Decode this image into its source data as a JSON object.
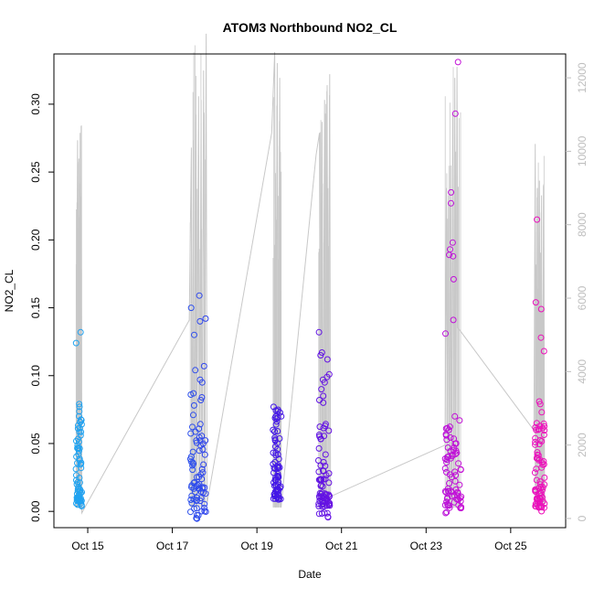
{
  "chart_data": {
    "type": "scatter",
    "title": "ATOM3 Northbound NO2_CL",
    "xlabel": "Date",
    "ylabel": "NO2_CL",
    "x_ticks": [
      "Oct 15",
      "Oct 17",
      "Oct 19",
      "Oct 21",
      "Oct 23",
      "Oct 25"
    ],
    "y_ticks": [
      "0.00",
      "0.05",
      "0.10",
      "0.15",
      "0.20",
      "0.25",
      "0.30"
    ],
    "y2_ticks": [
      "0",
      "2000",
      "4000",
      "6000",
      "8000",
      "10000",
      "12000"
    ],
    "xlim_days": [
      14.2,
      26.3
    ],
    "ylim": [
      -0.012,
      0.337
    ],
    "y2lim": [
      -250,
      12650
    ],
    "colors": {
      "altitude_line": "#c8c8c8",
      "axis": "#000000",
      "right_axis": "#bebebe",
      "points_gradient": [
        "#1fa8f0",
        "#2a64ee",
        "#3a18e8",
        "#7a10e0",
        "#c010d8",
        "#f010b8"
      ]
    },
    "clusters": [
      {
        "start": 14.72,
        "end": 14.86,
        "ymin": 0.003,
        "ymax": 0.133,
        "extras": [
          0.124,
          0.132,
          0.079,
          0.077,
          0.066
        ]
      },
      {
        "start": 17.42,
        "end": 17.8,
        "ymin": -0.006,
        "ymax": 0.159,
        "extras": [
          0.159,
          0.15,
          0.142,
          0.14,
          0.13,
          0.107,
          0.104,
          0.097,
          0.095,
          0.087,
          0.086,
          0.084,
          0.082,
          0.078,
          0.071
        ]
      },
      {
        "start": 19.38,
        "end": 19.58,
        "ymin": 0.008,
        "ymax": 0.077,
        "extras": [
          0.077,
          0.07,
          0.069,
          0.064,
          0.06
        ]
      },
      {
        "start": 20.45,
        "end": 20.73,
        "ymin": -0.006,
        "ymax": 0.132,
        "extras": [
          0.132,
          0.117,
          0.115,
          0.112,
          0.101,
          0.099,
          0.097,
          0.095,
          0.09,
          0.085,
          0.082,
          0.08
        ]
      },
      {
        "start": 23.45,
        "end": 23.83,
        "ymin": -0.002,
        "ymax": 0.331,
        "extras": [
          0.331,
          0.293,
          0.235,
          0.227,
          0.198,
          0.193,
          0.189,
          0.188,
          0.171,
          0.141,
          0.131,
          0.07,
          0.06,
          0.056
        ]
      },
      {
        "start": 25.57,
        "end": 25.8,
        "ymin": 0.0,
        "ymax": 0.215,
        "extras": [
          0.215,
          0.154,
          0.149,
          0.128,
          0.118,
          0.081,
          0.079,
          0.073,
          0.065,
          0.063,
          0.06
        ]
      }
    ],
    "altitude_track": [
      {
        "x": 14.74,
        "y": 5800
      },
      {
        "x": 14.76,
        "y": 10300
      },
      {
        "x": 14.77,
        "y": 300
      },
      {
        "x": 14.79,
        "y": 9800
      },
      {
        "x": 14.8,
        "y": 400
      },
      {
        "x": 14.82,
        "y": 10500
      },
      {
        "x": 14.83,
        "y": 250
      },
      {
        "x": 14.85,
        "y": 10700
      },
      {
        "x": 14.86,
        "y": 150
      },
      {
        "x": 17.4,
        "y": 5400
      },
      {
        "x": 17.45,
        "y": 10100
      },
      {
        "x": 17.47,
        "y": 300
      },
      {
        "x": 17.5,
        "y": 10300
      },
      {
        "x": 17.52,
        "y": 400
      },
      {
        "x": 17.56,
        "y": 11000
      },
      {
        "x": 17.58,
        "y": 300
      },
      {
        "x": 17.62,
        "y": 11500
      },
      {
        "x": 17.64,
        "y": 400
      },
      {
        "x": 17.68,
        "y": 11400
      },
      {
        "x": 17.7,
        "y": 300
      },
      {
        "x": 17.74,
        "y": 12200
      },
      {
        "x": 17.76,
        "y": 400
      },
      {
        "x": 17.8,
        "y": 13200
      },
      {
        "x": 17.82,
        "y": 400
      },
      {
        "x": 19.35,
        "y": 10500
      },
      {
        "x": 19.42,
        "y": 12700
      },
      {
        "x": 19.44,
        "y": 300
      },
      {
        "x": 19.48,
        "y": 12400
      },
      {
        "x": 19.5,
        "y": 300
      },
      {
        "x": 19.54,
        "y": 12000
      },
      {
        "x": 19.57,
        "y": 300
      },
      {
        "x": 20.4,
        "y": 9900
      },
      {
        "x": 20.48,
        "y": 10500
      },
      {
        "x": 20.5,
        "y": 300
      },
      {
        "x": 20.54,
        "y": 10800
      },
      {
        "x": 20.56,
        "y": 300
      },
      {
        "x": 20.6,
        "y": 11400
      },
      {
        "x": 20.62,
        "y": 300
      },
      {
        "x": 20.66,
        "y": 11800
      },
      {
        "x": 20.68,
        "y": 300
      },
      {
        "x": 20.72,
        "y": 12100
      },
      {
        "x": 20.74,
        "y": 600
      },
      {
        "x": 23.45,
        "y": 2000
      },
      {
        "x": 23.48,
        "y": 9000
      },
      {
        "x": 23.5,
        "y": 300
      },
      {
        "x": 23.53,
        "y": 8800
      },
      {
        "x": 23.55,
        "y": 300
      },
      {
        "x": 23.58,
        "y": 8600
      },
      {
        "x": 23.6,
        "y": 300
      },
      {
        "x": 23.63,
        "y": 11000
      },
      {
        "x": 23.65,
        "y": 300
      },
      {
        "x": 23.68,
        "y": 12000
      },
      {
        "x": 23.7,
        "y": 300
      },
      {
        "x": 23.73,
        "y": 12300
      },
      {
        "x": 23.75,
        "y": 5200
      },
      {
        "x": 25.55,
        "y": 2400
      },
      {
        "x": 25.58,
        "y": 10200
      },
      {
        "x": 25.6,
        "y": 400
      },
      {
        "x": 25.63,
        "y": 9000
      },
      {
        "x": 25.65,
        "y": 400
      },
      {
        "x": 25.68,
        "y": 9200
      },
      {
        "x": 25.7,
        "y": 400
      },
      {
        "x": 25.73,
        "y": 8800
      },
      {
        "x": 25.75,
        "y": 400
      },
      {
        "x": 25.78,
        "y": 9100
      },
      {
        "x": 25.8,
        "y": 400
      }
    ]
  }
}
